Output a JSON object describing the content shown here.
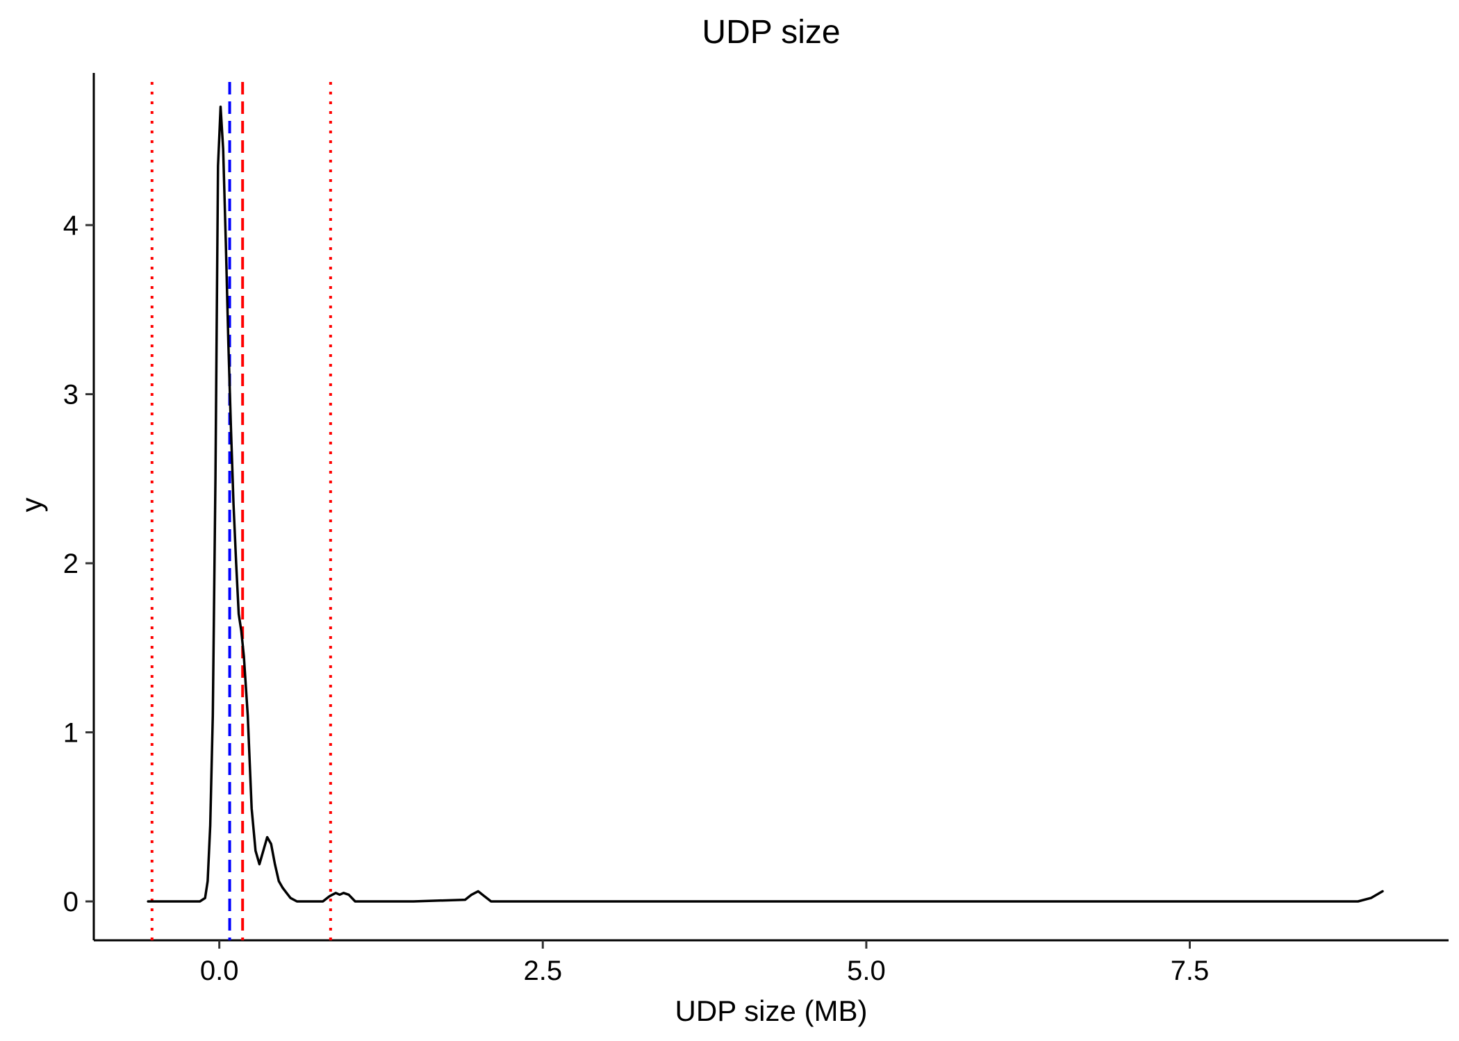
{
  "chart_data": {
    "type": "line",
    "title": "UDP size",
    "xlabel": "UDP size (MB)",
    "ylabel": "y",
    "xlim": [
      -0.97,
      9.5
    ],
    "ylim": [
      -0.23,
      4.9
    ],
    "x_ticks": [
      0.0,
      2.5,
      5.0,
      7.5
    ],
    "x_tick_labels": [
      "0.0",
      "2.5",
      "5.0",
      "7.5"
    ],
    "y_ticks": [
      0,
      1,
      2,
      3,
      4
    ],
    "y_tick_labels": [
      "0",
      "1",
      "2",
      "3",
      "4"
    ],
    "grid": false,
    "series": [
      {
        "color": "#000000",
        "style": "solid",
        "x": [
          -0.55,
          -0.15,
          -0.11,
          -0.09,
          -0.07,
          -0.05,
          -0.03,
          -0.01,
          0.01,
          0.03,
          0.05,
          0.07,
          0.09,
          0.11,
          0.13,
          0.15,
          0.17,
          0.19,
          0.22,
          0.25,
          0.28,
          0.31,
          0.34,
          0.37,
          0.4,
          0.43,
          0.46,
          0.49,
          0.52,
          0.55,
          0.6,
          0.65,
          0.7,
          0.8,
          0.85,
          0.9,
          0.93,
          0.96,
          1.0,
          1.05,
          1.1,
          1.5,
          1.9,
          1.95,
          2.0,
          2.05,
          2.1,
          3.0,
          5.0,
          7.0,
          8.8,
          8.9,
          8.99
        ],
        "y": [
          0,
          0,
          0.02,
          0.12,
          0.45,
          1.1,
          2.5,
          4.35,
          4.7,
          4.45,
          3.9,
          3.3,
          2.8,
          2.35,
          2.0,
          1.7,
          1.6,
          1.45,
          1.1,
          0.55,
          0.3,
          0.22,
          0.3,
          0.38,
          0.34,
          0.22,
          0.12,
          0.08,
          0.05,
          0.02,
          0,
          0,
          0,
          0,
          0.03,
          0.05,
          0.04,
          0.05,
          0.04,
          0,
          0,
          0,
          0.01,
          0.04,
          0.06,
          0.03,
          0,
          0,
          0,
          0,
          0,
          0.02,
          0.06
        ]
      }
    ],
    "vlines": [
      {
        "x": -0.52,
        "color": "#ff0000",
        "style": "dotted"
      },
      {
        "x": 0.08,
        "color": "#0000ff",
        "style": "dashed"
      },
      {
        "x": 0.18,
        "color": "#ff0000",
        "style": "dashed"
      },
      {
        "x": 0.86,
        "color": "#ff0000",
        "style": "dotted"
      }
    ]
  }
}
